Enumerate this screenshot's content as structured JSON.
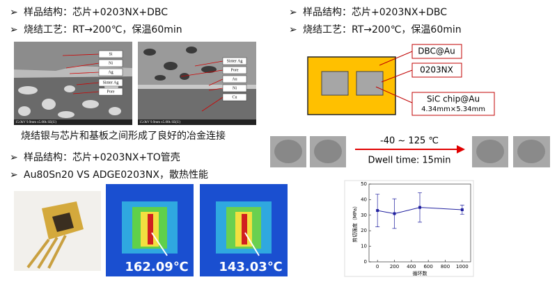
{
  "left_top": {
    "bullets": [
      "样品结构：芯片+0203NX+DBC",
      "烧结工艺：RT→200℃，保温60min"
    ],
    "sem_left_labels": [
      "Si",
      "Ni",
      "Ag",
      "Sinter Ag",
      "Pore"
    ],
    "sem_right_labels": [
      "Sinter Ag",
      "Pore",
      "Au",
      "Ni",
      "Cu"
    ],
    "sem_footer": "15.0kV 9.9mm x5.00k SE(U)",
    "caption": "烧结银与芯片和基板之间形成了良好的冶金连接"
  },
  "left_bottom": {
    "bullets": [
      "样品结构：芯片+0203NX+TO管壳",
      "Au80Sn20  VS ADGE0203NX，散热性能"
    ],
    "temperatures": [
      "162.09℃",
      "143.03℃"
    ]
  },
  "right_top": {
    "bullets": [
      "样品结构：芯片+0203NX+DBC",
      "烧结工艺：RT→200℃，保温60min"
    ],
    "callouts": [
      "DBC@Au",
      "0203NX",
      "SiC chip@Au",
      "4.34mm×5.34mm"
    ]
  },
  "cycling": {
    "range": "-40 ~ 125 ℃",
    "dwell": "Dwell time: 15min"
  },
  "chart_data": {
    "type": "line",
    "y_label": "剪切强度（MPa）",
    "x_label": "循环数",
    "x": [
      0,
      200,
      500,
      1000
    ],
    "values": [
      33,
      31,
      35,
      33.5
    ],
    "errors": [
      10.5,
      9.5,
      9.5,
      3
    ],
    "color": "#1f1f9f",
    "xlim": [
      -100,
      1100
    ],
    "ylim": [
      0,
      50
    ],
    "xticks": [
      0,
      200,
      400,
      600,
      800,
      1000
    ],
    "yticks": [
      0,
      10,
      20,
      30,
      40,
      50
    ]
  }
}
